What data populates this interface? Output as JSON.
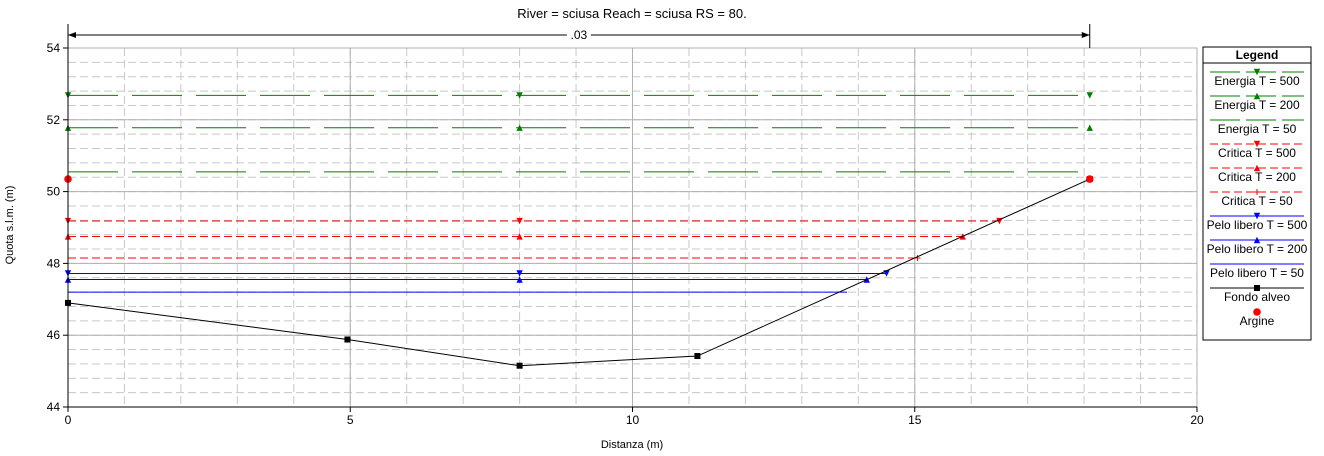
{
  "chart_data": {
    "type": "line",
    "title": "River = sciusa   Reach = sciusa      RS = 80.",
    "xlabel": "Distanza (m)",
    "ylabel": "Quota s.l.m. (m)",
    "xlim": [
      0,
      20
    ],
    "ylim": [
      44,
      54
    ],
    "xticks": [
      0,
      5,
      10,
      15,
      20
    ],
    "yticks": [
      44,
      46,
      48,
      50,
      52,
      54
    ],
    "grid": true,
    "legend_title": "Legend",
    "legend_placement": "right",
    "manning_label": ".03",
    "manning_span": [
      0,
      18.1
    ],
    "series": [
      {
        "name": "Energia T = 500",
        "color": "#007f00",
        "dash": "long",
        "marker": "tri-down",
        "x": [
          0,
          18.1
        ],
        "y": [
          52.68,
          52.68
        ],
        "marker_x": [
          0,
          8,
          18.1
        ]
      },
      {
        "name": "Energia T = 200",
        "color": "#007f00",
        "dash": "long",
        "marker": "tri-up",
        "x": [
          0,
          18.1
        ],
        "y": [
          51.78,
          51.78
        ],
        "marker_x": [
          0,
          8,
          18.1
        ]
      },
      {
        "name": "Energia T = 50",
        "color": "#007f00",
        "dash": "long",
        "marker": "none",
        "x": [
          0,
          18.1
        ],
        "y": [
          50.55,
          50.55
        ],
        "marker_x": []
      },
      {
        "name": "Critica T = 500",
        "color": "#ff0000",
        "dash": "short",
        "marker": "tri-down",
        "x": [
          0,
          16.5
        ],
        "y": [
          49.18,
          49.18
        ],
        "marker_x": [
          0,
          8,
          16.5
        ]
      },
      {
        "name": "Critica T = 200",
        "color": "#ff0000",
        "dash": "short",
        "marker": "tri-up",
        "x": [
          0,
          15.85
        ],
        "y": [
          48.75,
          48.75
        ],
        "marker_x": [
          0,
          8,
          15.85
        ]
      },
      {
        "name": "Critica T = 50",
        "color": "#ff0000",
        "dash": "short",
        "marker": "plus",
        "x": [
          0,
          15.05
        ],
        "y": [
          48.15,
          48.15
        ],
        "marker_x": [
          15.05
        ]
      },
      {
        "name": "Pelo libero T = 500",
        "color": "#0000ff",
        "dash": "solid",
        "marker": "tri-down",
        "x": [
          0,
          14.5
        ],
        "y": [
          47.72,
          47.72
        ],
        "marker_x": [
          0,
          8,
          14.5
        ]
      },
      {
        "name": "Pelo libero T = 200",
        "color": "#0000ff",
        "dash": "solid",
        "marker": "tri-up",
        "x": [
          0,
          14.15
        ],
        "y": [
          47.55,
          47.55
        ],
        "marker_x": [
          0,
          8,
          14.15
        ]
      },
      {
        "name": "Pelo libero T = 50",
        "color": "#0000ff",
        "dash": "solid",
        "marker": "none",
        "x": [
          0,
          13.8
        ],
        "y": [
          47.2,
          47.2
        ],
        "marker_x": []
      },
      {
        "name": "Fondo alveo",
        "color": "#000000",
        "dash": "solid",
        "marker": "square",
        "x": [
          0,
          4.95,
          8,
          11.15,
          18.1
        ],
        "y": [
          46.9,
          45.88,
          45.15,
          45.42,
          50.35
        ],
        "marker_x": [
          0,
          4.95,
          8,
          11.15,
          18.1
        ]
      },
      {
        "name": "Argine",
        "color": "#ff0000",
        "dash": "none",
        "marker": "circle",
        "x": [
          0,
          18.1
        ],
        "y": [
          50.35,
          50.35
        ],
        "marker_x": [
          0,
          18.1
        ]
      }
    ]
  }
}
